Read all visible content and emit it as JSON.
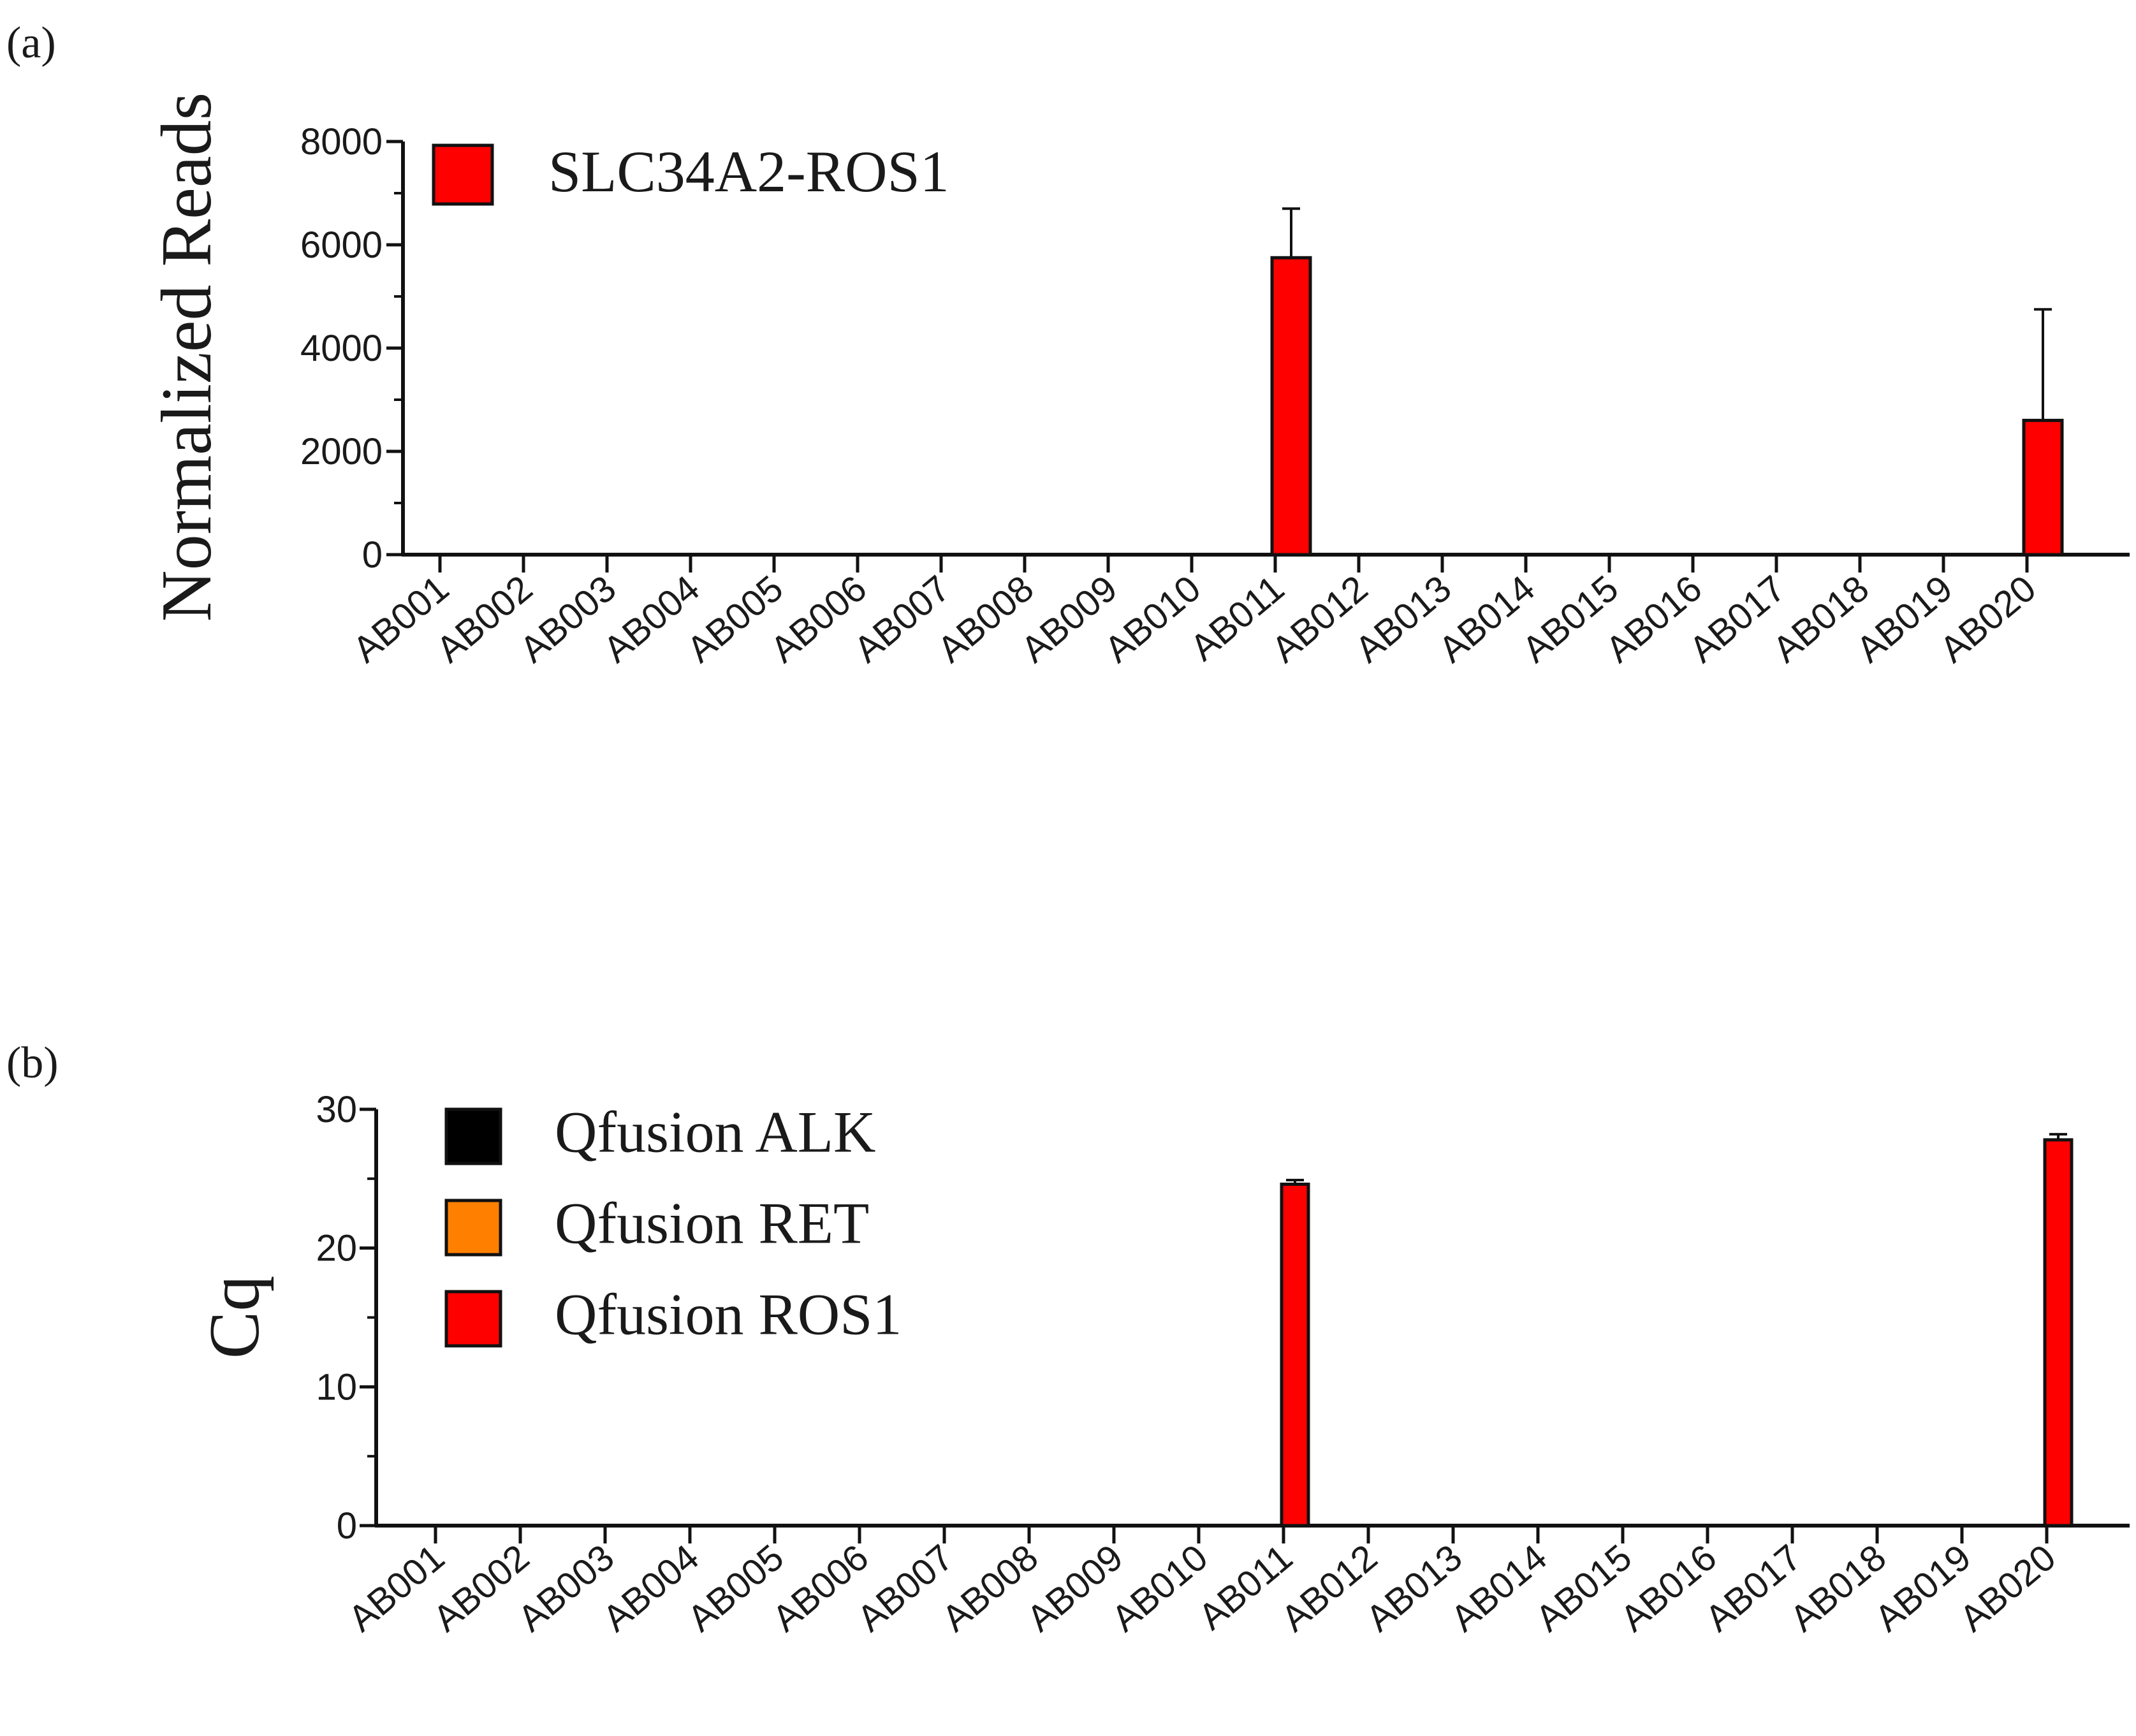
{
  "chart_data": [
    {
      "panel_label": "(a)",
      "type": "bar",
      "ylabel": "Normalized Reads",
      "ylim": [
        0,
        8000
      ],
      "yticks": [
        0,
        2000,
        4000,
        6000,
        8000
      ],
      "categories": [
        "AB001",
        "AB002",
        "AB003",
        "AB004",
        "AB005",
        "AB006",
        "AB007",
        "AB008",
        "AB009",
        "AB010",
        "AB011",
        "AB012",
        "AB013",
        "AB014",
        "AB015",
        "AB016",
        "AB017",
        "AB018",
        "AB019",
        "AB020"
      ],
      "series": [
        {
          "name": "SLC34A2-ROS1",
          "color": "#ff0000",
          "values": [
            0,
            0,
            0,
            0,
            0,
            0,
            0,
            0,
            0,
            0,
            5750,
            0,
            0,
            0,
            0,
            0,
            0,
            0,
            0,
            2600
          ],
          "error": [
            0,
            0,
            0,
            0,
            0,
            0,
            0,
            0,
            0,
            0,
            950,
            0,
            0,
            0,
            0,
            0,
            0,
            0,
            0,
            2150
          ]
        }
      ],
      "legend_position": "top-left",
      "grid": false
    },
    {
      "panel_label": "(b)",
      "type": "bar",
      "ylabel": "Cq",
      "ylim": [
        0,
        30
      ],
      "yticks": [
        0,
        10,
        20,
        30
      ],
      "categories": [
        "AB001",
        "AB002",
        "AB003",
        "AB004",
        "AB005",
        "AB006",
        "AB007",
        "AB008",
        "AB009",
        "AB010",
        "AB011",
        "AB012",
        "AB013",
        "AB014",
        "AB015",
        "AB016",
        "AB017",
        "AB018",
        "AB019",
        "AB020"
      ],
      "series": [
        {
          "name": "Qfusion ALK",
          "color": "#000000",
          "values": [
            0,
            0,
            0,
            0,
            0,
            0,
            0,
            0,
            0,
            0,
            0,
            0,
            0,
            0,
            0,
            0,
            0,
            0,
            0,
            0
          ],
          "error": [
            0,
            0,
            0,
            0,
            0,
            0,
            0,
            0,
            0,
            0,
            0,
            0,
            0,
            0,
            0,
            0,
            0,
            0,
            0,
            0
          ]
        },
        {
          "name": "Qfusion RET",
          "color": "#ff8000",
          "values": [
            0,
            0,
            0,
            0,
            0,
            0,
            0,
            0,
            0,
            0,
            0,
            0,
            0,
            0,
            0,
            0,
            0,
            0,
            0,
            0
          ],
          "error": [
            0,
            0,
            0,
            0,
            0,
            0,
            0,
            0,
            0,
            0,
            0,
            0,
            0,
            0,
            0,
            0,
            0,
            0,
            0,
            0
          ]
        },
        {
          "name": "Qfusion ROS1",
          "color": "#ff0000",
          "values": [
            0,
            0,
            0,
            0,
            0,
            0,
            0,
            0,
            0,
            0,
            24.6,
            0,
            0,
            0,
            0,
            0,
            0,
            0,
            0,
            27.8
          ],
          "error": [
            0,
            0,
            0,
            0,
            0,
            0,
            0,
            0,
            0,
            0,
            0.3,
            0,
            0,
            0,
            0,
            0,
            0,
            0,
            0,
            0.4
          ]
        }
      ],
      "legend_position": "top-left",
      "grid": false
    }
  ]
}
